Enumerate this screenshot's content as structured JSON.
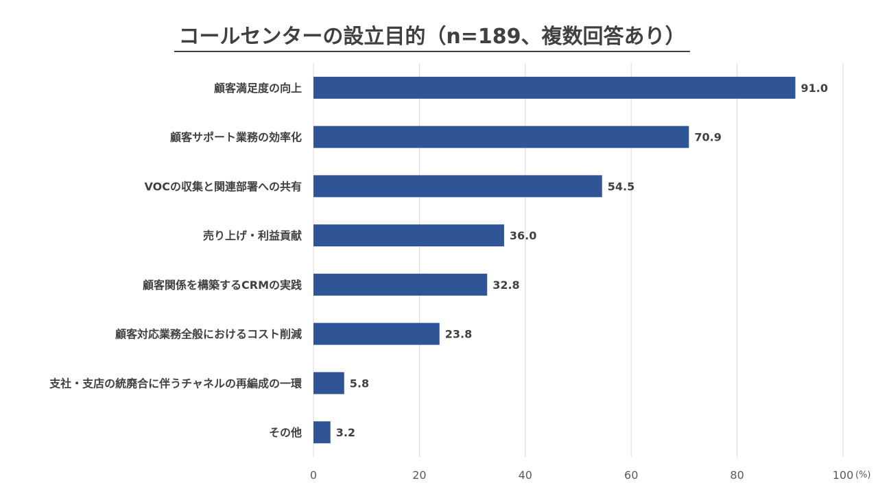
{
  "chart_data": {
    "type": "bar",
    "orientation": "horizontal",
    "title": "コールセンターの設立目的（n=189、複数回答あり）",
    "unit": "(%)",
    "categories": [
      "顧客満足度の向上",
      "顧客サポート業務の効率化",
      "VOCの収集と関連部署への共有",
      "売り上げ・利益貢献",
      "顧客関係を構築するCRMの実践",
      "顧客対応業務全般におけるコスト削減",
      "支社・支店の統廃合に伴うチャネルの再編成の一環",
      "その他"
    ],
    "values": [
      91.0,
      70.9,
      54.5,
      36.0,
      32.8,
      23.8,
      5.8,
      3.2
    ],
    "value_labels": [
      "91.0",
      "70.9",
      "54.5",
      "36.0",
      "32.8",
      "23.8",
      "5.8",
      "3.2"
    ],
    "xlim": [
      0,
      100
    ],
    "xticks": [
      0,
      20,
      40,
      60,
      80,
      100
    ],
    "grid": "vertical",
    "bar_color": "#2F5597"
  }
}
